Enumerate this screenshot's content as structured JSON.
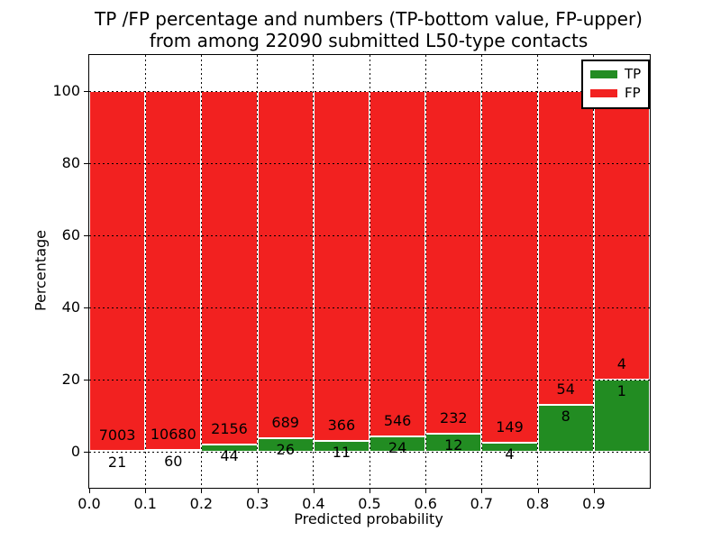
{
  "title": {
    "line1": "TP /FP percentage and numbers (TP-bottom value, FP-upper)",
    "line2": "from among 22090 submitted L50-type contacts"
  },
  "axes": {
    "x_label": "Predicted probability",
    "y_label": "Percentage",
    "x_ticks": [
      "0.0",
      "0.1",
      "0.2",
      "0.3",
      "0.4",
      "0.5",
      "0.6",
      "0.7",
      "0.8",
      "0.9"
    ],
    "y_ticks": [
      "0",
      "20",
      "40",
      "60",
      "80",
      "100"
    ]
  },
  "legend": {
    "entries": [
      {
        "label": "TP",
        "color": "#228c22"
      },
      {
        "label": "FP",
        "color": "#f22120"
      }
    ]
  },
  "colors": {
    "tp": "#228c22",
    "fp": "#f22120",
    "bar_edge": "#ffffff",
    "grid": "#000000",
    "spine": "#000000"
  },
  "chart_data": {
    "type": "bar",
    "stacked": true,
    "normalized_to_percent": true,
    "title": "TP /FP percentage and numbers (TP-bottom value, FP-upper) from among 22090 submitted L50-type contacts",
    "xlabel": "Predicted probability",
    "ylabel": "Percentage",
    "total_contacts": 22090,
    "bin_width": 0.1,
    "categories": [
      "0.0",
      "0.1",
      "0.2",
      "0.3",
      "0.4",
      "0.5",
      "0.6",
      "0.7",
      "0.8",
      "0.9"
    ],
    "series": [
      {
        "name": "TP",
        "color": "#228c22",
        "counts": [
          21,
          60,
          44,
          26,
          11,
          24,
          12,
          4,
          8,
          1
        ]
      },
      {
        "name": "FP",
        "color": "#f22120",
        "counts": [
          7003,
          10680,
          2156,
          689,
          366,
          546,
          232,
          149,
          54,
          4
        ]
      }
    ],
    "tp_percent_of_bin": [
      0.3,
      0.56,
      2.0,
      3.64,
      2.92,
      4.21,
      4.92,
      2.61,
      12.9,
      20.0
    ],
    "xlim": [
      0.0,
      1.0
    ],
    "ylim": [
      -10,
      110
    ],
    "y_gridlines": [
      0,
      20,
      40,
      60,
      80,
      100
    ],
    "grid_style": "dotted",
    "legend_position": "upper right"
  }
}
